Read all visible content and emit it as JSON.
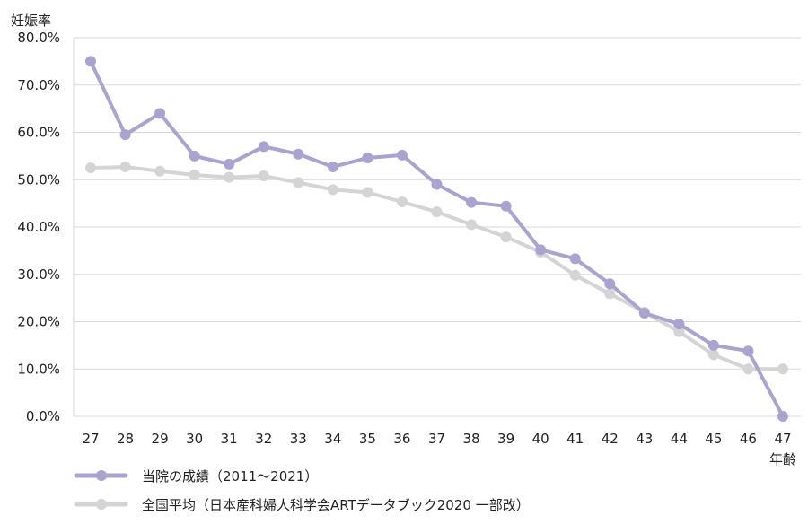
{
  "chart_data": {
    "type": "line",
    "ylabel": "妊娠率",
    "xlabel": "年齢",
    "ylim": [
      0,
      80
    ],
    "yticks": [
      "0.0%",
      "10.0%",
      "20.0%",
      "30.0%",
      "40.0%",
      "50.0%",
      "60.0%",
      "70.0%",
      "80.0%"
    ],
    "categories": [
      "27",
      "28",
      "29",
      "30",
      "31",
      "32",
      "33",
      "34",
      "35",
      "36",
      "37",
      "38",
      "39",
      "40",
      "41",
      "42",
      "43",
      "44",
      "45",
      "46",
      "47"
    ],
    "grid": "horizontal",
    "legend_position": "bottom-left",
    "series": [
      {
        "name": "当院の成績（2011～2021）",
        "color": "#a9a3cf",
        "values": [
          75.0,
          59.5,
          64.0,
          55.0,
          53.3,
          57.0,
          55.4,
          52.7,
          54.6,
          55.2,
          49.0,
          45.2,
          44.4,
          35.2,
          33.3,
          28.0,
          21.8,
          19.5,
          15.0,
          13.8,
          0.0
        ]
      },
      {
        "name": "全国平均（日本産科婦人科学会ARTデータブック2020 一部改）",
        "color": "#d4d4d4",
        "values": [
          52.5,
          52.7,
          51.8,
          51.0,
          50.5,
          50.8,
          49.4,
          47.9,
          47.3,
          45.3,
          43.2,
          40.5,
          37.9,
          34.7,
          29.8,
          25.9,
          22.0,
          17.9,
          13.0,
          10.0,
          10.0
        ]
      }
    ]
  }
}
